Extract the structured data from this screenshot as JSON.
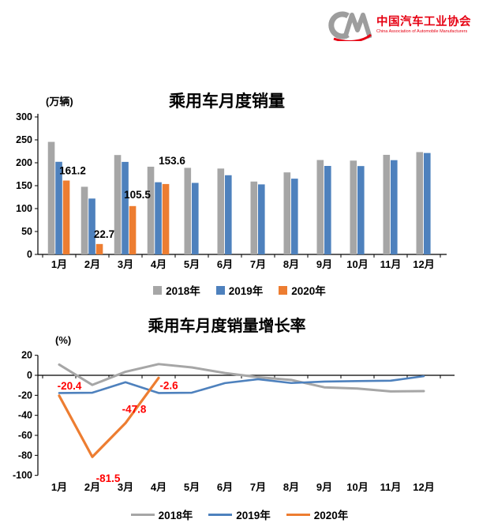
{
  "logo": {
    "org_name_cn": "中国汽车工业协会",
    "org_name_en": "China Association of Automobile Manufacturers",
    "accent_color": "#e60012",
    "mark_color": "#9d9d9d"
  },
  "chart_data": [
    {
      "type": "bar",
      "title": "乘用车月度销量",
      "unit_label": "(万辆)",
      "categories": [
        "1月",
        "2月",
        "3月",
        "4月",
        "5月",
        "6月",
        "7月",
        "8月",
        "9月",
        "10月",
        "11月",
        "12月"
      ],
      "ylim": [
        0,
        300
      ],
      "ytick_step": 50,
      "grid": false,
      "legend_position": "bottom",
      "annotation_color": "#000000",
      "series": [
        {
          "name": "2018年",
          "color": "#a6a6a6",
          "values": [
            245.6,
            147.6,
            216.9,
            191.4,
            188.9,
            187.4,
            159.0,
            179.0,
            206.0,
            204.7,
            217.3,
            223.3
          ]
        },
        {
          "name": "2019年",
          "color": "#4e81bd",
          "values": [
            202.1,
            121.9,
            201.9,
            157.5,
            156.1,
            172.8,
            152.8,
            165.3,
            193.1,
            192.8,
            205.7,
            221.3
          ]
        },
        {
          "name": "2020年",
          "color": "#ed7d31",
          "values": [
            161.2,
            22.7,
            105.5,
            153.6,
            null,
            null,
            null,
            null,
            null,
            null,
            null,
            null
          ]
        }
      ],
      "annotations": [
        {
          "series": "2020年",
          "index": 0,
          "text": "161.2"
        },
        {
          "series": "2020年",
          "index": 1,
          "text": "22.7"
        },
        {
          "series": "2020年",
          "index": 2,
          "text": "105.5"
        },
        {
          "series": "2020年",
          "index": 3,
          "text": "153.6"
        }
      ]
    },
    {
      "type": "line",
      "title": "乘用车月度销量增长率",
      "unit_label": "(%)",
      "categories": [
        "1月",
        "2月",
        "3月",
        "4月",
        "5月",
        "6月",
        "7月",
        "8月",
        "9月",
        "10月",
        "11月",
        "12月"
      ],
      "ylim": [
        -100,
        20
      ],
      "ytick_step": 20,
      "grid": false,
      "legend_position": "bottom",
      "annotation_color": "#ff0000",
      "series": [
        {
          "name": "2018年",
          "color": "#a6a6a6",
          "values": [
            10.7,
            -9.6,
            3.5,
            11.2,
            7.9,
            2.3,
            -1.9,
            -4.6,
            -12.0,
            -13.2,
            -16.1,
            -15.8
          ]
        },
        {
          "name": "2019年",
          "color": "#4e81bd",
          "values": [
            -17.7,
            -17.4,
            -6.9,
            -17.7,
            -17.4,
            -7.8,
            -3.9,
            -7.7,
            -6.3,
            -5.8,
            -5.4,
            -0.9
          ]
        },
        {
          "name": "2020年",
          "color": "#ed7d31",
          "values": [
            -20.4,
            -81.5,
            -47.8,
            -2.6,
            null,
            null,
            null,
            null,
            null,
            null,
            null,
            null
          ]
        }
      ],
      "annotations": [
        {
          "series": "2020年",
          "index": 0,
          "text": "-20.4"
        },
        {
          "series": "2020年",
          "index": 1,
          "text": "-81.5"
        },
        {
          "series": "2020年",
          "index": 2,
          "text": "-47.8"
        },
        {
          "series": "2020年",
          "index": 3,
          "text": "-2.6"
        }
      ]
    }
  ]
}
